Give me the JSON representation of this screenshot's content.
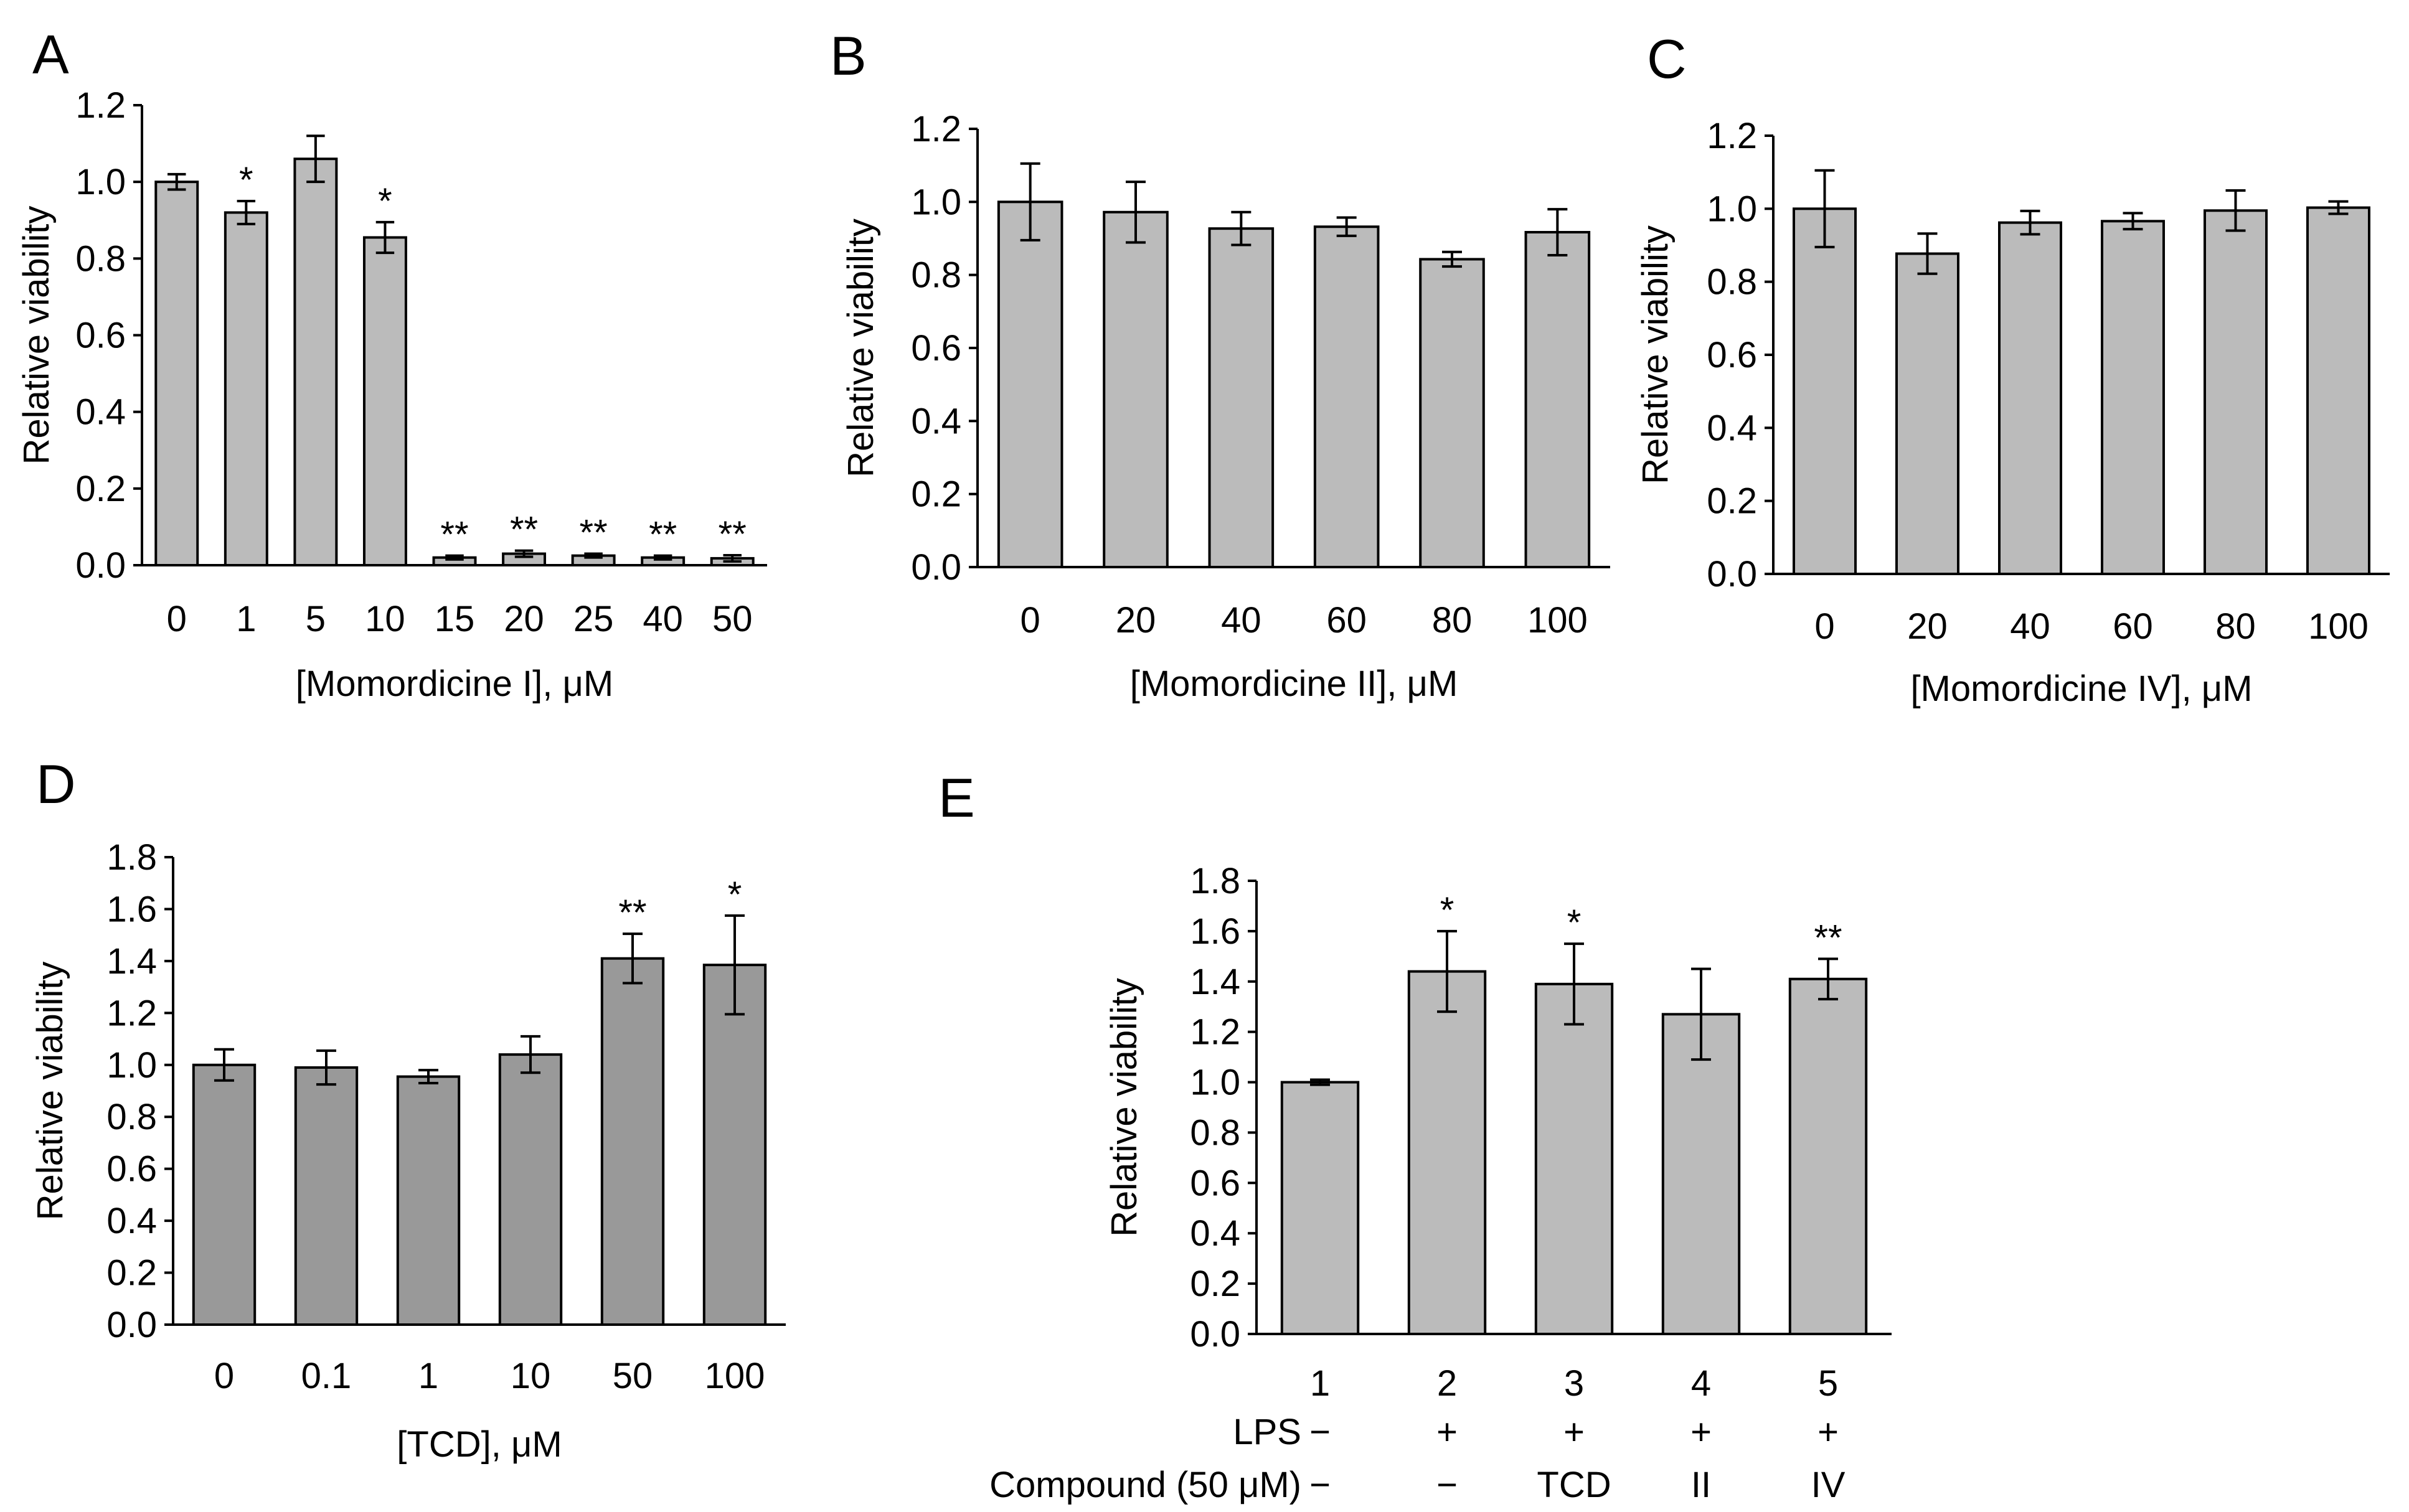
{
  "chart_data": [
    {
      "panel": "A",
      "type": "bar",
      "ylabel": "Relative viability",
      "xlabel": "[Momordicine I], μM",
      "categories": [
        "0",
        "1",
        "5",
        "10",
        "15",
        "20",
        "25",
        "40",
        "50"
      ],
      "values": [
        1.0,
        0.92,
        1.06,
        0.855,
        0.02,
        0.03,
        0.025,
        0.02,
        0.018
      ],
      "errors": [
        0.02,
        0.03,
        0.06,
        0.04,
        0.005,
        0.008,
        0.005,
        0.005,
        0.008
      ],
      "significance": [
        "",
        "*",
        "",
        "*",
        "**",
        "**",
        "**",
        "**",
        "**"
      ],
      "ylim": [
        0,
        1.2
      ],
      "yticks": [
        "0.0",
        "0.2",
        "0.4",
        "0.6",
        "0.8",
        "1.0",
        "1.2"
      ],
      "bar_color": "#bbbbbb"
    },
    {
      "panel": "B",
      "type": "bar",
      "ylabel": "Relative viability",
      "xlabel": "[Momordicine II], μM",
      "categories": [
        "0",
        "20",
        "40",
        "60",
        "80",
        "100"
      ],
      "values": [
        1.0,
        0.972,
        0.927,
        0.932,
        0.843,
        0.917
      ],
      "errors": [
        0.105,
        0.083,
        0.045,
        0.025,
        0.02,
        0.063
      ],
      "significance": [
        "",
        "",
        "",
        "",
        "",
        ""
      ],
      "ylim": [
        0,
        1.2
      ],
      "yticks": [
        "0.0",
        "0.2",
        "0.4",
        "0.6",
        "0.8",
        "1.0",
        "1.2"
      ],
      "bar_color": "#bbbbbb"
    },
    {
      "panel": "C",
      "type": "bar",
      "ylabel": "Relative viability",
      "xlabel": "[Momordicine IV], μM",
      "categories": [
        "0",
        "20",
        "40",
        "60",
        "80",
        "100"
      ],
      "values": [
        1.0,
        0.877,
        0.962,
        0.966,
        0.995,
        1.003
      ],
      "errors": [
        0.105,
        0.055,
        0.032,
        0.022,
        0.055,
        0.017
      ],
      "significance": [
        "",
        "",
        "",
        "",
        "",
        ""
      ],
      "ylim": [
        0,
        1.2
      ],
      "yticks": [
        "0.0",
        "0.2",
        "0.4",
        "0.6",
        "0.8",
        "1.0",
        "1.2"
      ],
      "bar_color": "#bbbbbb"
    },
    {
      "panel": "D",
      "type": "bar",
      "ylabel": "Relative viability",
      "xlabel": "[TCD], μM",
      "categories": [
        "0",
        "0.1",
        "1",
        "10",
        "50",
        "100"
      ],
      "values": [
        1.0,
        0.99,
        0.955,
        1.04,
        1.41,
        1.385
      ],
      "errors": [
        0.06,
        0.065,
        0.025,
        0.07,
        0.095,
        0.19
      ],
      "significance": [
        "",
        "",
        "",
        "",
        "**",
        "*"
      ],
      "ylim": [
        0,
        1.8
      ],
      "yticks": [
        "0.0",
        "0.2",
        "0.4",
        "0.6",
        "0.8",
        "1.0",
        "1.2",
        "1.4",
        "1.6",
        "1.8"
      ],
      "bar_color": "#999999"
    },
    {
      "panel": "E",
      "type": "bar",
      "ylabel": "Relative viability",
      "xlabel": "",
      "categories": [
        "1",
        "2",
        "3",
        "4",
        "5"
      ],
      "values": [
        1.0,
        1.44,
        1.39,
        1.27,
        1.41
      ],
      "errors": [
        0.01,
        0.16,
        0.16,
        0.18,
        0.08
      ],
      "significance": [
        "",
        "*",
        "*",
        "",
        "**"
      ],
      "ylim": [
        0,
        1.8
      ],
      "yticks": [
        "0.0",
        "0.2",
        "0.4",
        "0.6",
        "0.8",
        "1.0",
        "1.2",
        "1.4",
        "1.6",
        "1.8"
      ],
      "bar_color": "#bbbbbb",
      "condition_rows": [
        {
          "label": "LPS",
          "values": [
            "−",
            "+",
            "+",
            "+",
            "+"
          ]
        },
        {
          "label": "Compound (50 μM)",
          "values": [
            "−",
            "−",
            "TCD",
            "II",
            "IV"
          ]
        }
      ]
    }
  ]
}
